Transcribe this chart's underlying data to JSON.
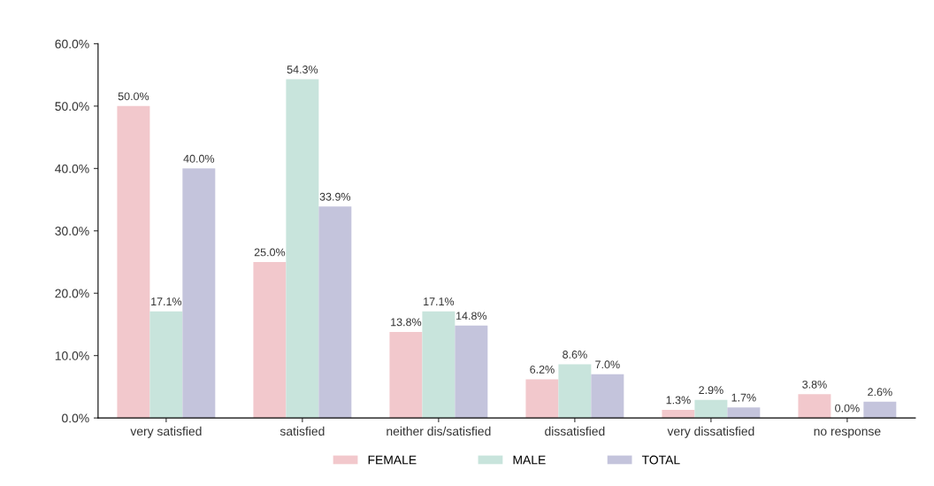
{
  "chart_data": {
    "type": "bar",
    "categories": [
      "very satisfied",
      "satisfied",
      "neither dis/satisfied",
      "dissatisfied",
      "very dissatisfied",
      "no response"
    ],
    "series": [
      {
        "name": "FEMALE",
        "color": "#f2c8cc",
        "values": [
          50.0,
          25.0,
          13.8,
          6.2,
          1.3,
          3.8
        ],
        "value_labels": [
          "50.0%",
          "25.0%",
          "13.8%",
          "6.2%",
          "1.3%",
          "3.8%"
        ]
      },
      {
        "name": "MALE",
        "color": "#c8e4dc",
        "values": [
          17.1,
          54.3,
          17.1,
          8.6,
          2.9,
          0.0
        ],
        "value_labels": [
          "17.1%",
          "54.3%",
          "17.1%",
          "8.6%",
          "2.9%",
          "0.0%"
        ]
      },
      {
        "name": "TOTAL",
        "color": "#c4c4dc",
        "values": [
          40.0,
          33.9,
          14.8,
          7.0,
          1.7,
          2.6
        ],
        "value_labels": [
          "40.0%",
          "33.9%",
          "14.8%",
          "7.0%",
          "1.7%",
          "2.6%"
        ]
      }
    ],
    "ylim": [
      0,
      60
    ],
    "yticks": [
      {
        "value": 0,
        "label": "0.0%"
      },
      {
        "value": 10,
        "label": "10.0%"
      },
      {
        "value": 20,
        "label": "20.0%"
      },
      {
        "value": 30,
        "label": "30.0%"
      },
      {
        "value": 40,
        "label": "40.0%"
      },
      {
        "value": 50,
        "label": "50.0%"
      },
      {
        "value": 60,
        "label": "60.0%"
      }
    ],
    "grid": false,
    "legend": "bottom"
  }
}
